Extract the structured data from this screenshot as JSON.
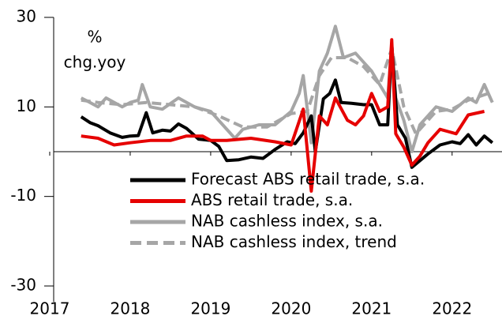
{
  "chart_data": {
    "type": "line",
    "annotation": "%",
    "annotation2": "chg.yoy",
    "xlim": [
      2017,
      2022.62
    ],
    "xticks": [
      2017,
      2018,
      2019,
      2020,
      2021,
      2022
    ],
    "ylim": [
      -30,
      30
    ],
    "yticks": [
      30,
      10,
      -10,
      -30
    ],
    "series": [
      {
        "name": "Forecast ABS retail trade, s.a.",
        "color": "#000000",
        "dash": false,
        "x": [
          2017.39,
          2017.5,
          2017.6,
          2017.75,
          2017.9,
          2018.0,
          2018.1,
          2018.2,
          2018.28,
          2018.4,
          2018.5,
          2018.6,
          2018.7,
          2018.85,
          2019.0,
          2019.1,
          2019.2,
          2019.35,
          2019.5,
          2019.65,
          2019.8,
          2019.95,
          2020.05,
          2020.15,
          2020.25,
          2020.3,
          2020.4,
          2020.48,
          2020.55,
          2020.62,
          2020.75,
          2020.9,
          2021.0,
          2021.1,
          2021.2,
          2021.25,
          2021.32,
          2021.42,
          2021.5,
          2021.6,
          2021.7,
          2021.85,
          2022.0,
          2022.1,
          2022.2,
          2022.3,
          2022.4,
          2022.5
        ],
        "values": [
          7.8,
          6.5,
          5.8,
          4.2,
          3.2,
          3.5,
          3.6,
          8.7,
          4.2,
          4.8,
          4.6,
          6.2,
          5.2,
          2.8,
          2.5,
          1.2,
          -2,
          -1.8,
          -1.2,
          -1.5,
          0.5,
          2.2,
          1.8,
          4.2,
          8,
          0,
          11.8,
          13,
          16,
          11,
          10.8,
          10.5,
          10.5,
          6,
          6,
          24,
          6,
          3,
          -3.5,
          -2,
          -0.5,
          1.5,
          2.2,
          1.8,
          3.8,
          1.5,
          3.5,
          2
        ]
      },
      {
        "name": "ABS retail trade, s.a.",
        "color": "#e60000",
        "dash": false,
        "x": [
          2017.39,
          2017.6,
          2017.8,
          2018.0,
          2018.25,
          2018.5,
          2018.7,
          2018.9,
          2019.0,
          2019.2,
          2019.5,
          2019.8,
          2020.0,
          2020.15,
          2020.25,
          2020.35,
          2020.45,
          2020.55,
          2020.7,
          2020.8,
          2020.9,
          2021.0,
          2021.1,
          2021.2,
          2021.25,
          2021.3,
          2021.4,
          2021.5,
          2021.6,
          2021.7,
          2021.85,
          2021.95,
          2022.05,
          2022.2,
          2022.4
        ],
        "values": [
          3.5,
          3,
          1.5,
          2,
          2.5,
          2.5,
          3.5,
          3.5,
          2.5,
          2.5,
          3,
          2.2,
          1.5,
          9.5,
          -8.8,
          8,
          6,
          12,
          7,
          6,
          8,
          13,
          9,
          10,
          25,
          4,
          1,
          -3,
          -1,
          2,
          5,
          4.5,
          4,
          8.2,
          9
        ]
      },
      {
        "name": "NAB cashless index, s.a.",
        "color": "#a6a6a6",
        "dash": false,
        "x": [
          2017.39,
          2017.5,
          2017.6,
          2017.7,
          2017.9,
          2018.0,
          2018.1,
          2018.15,
          2018.25,
          2018.4,
          2018.6,
          2018.8,
          2019.0,
          2019.15,
          2019.3,
          2019.4,
          2019.6,
          2019.8,
          2020.0,
          2020.1,
          2020.15,
          2020.25,
          2020.35,
          2020.45,
          2020.55,
          2020.65,
          2020.8,
          2020.9,
          2021.0,
          2021.1,
          2021.2,
          2021.25,
          2021.3,
          2021.4,
          2021.5,
          2021.6,
          2021.8,
          2022.0,
          2022.2,
          2022.3,
          2022.4,
          2022.5
        ],
        "values": [
          12,
          11,
          10,
          12,
          10,
          11,
          11.5,
          15,
          10,
          9.5,
          12,
          10,
          9,
          6,
          3,
          5,
          6,
          6,
          9,
          13,
          17,
          2,
          18,
          22,
          28,
          21,
          22,
          20,
          18,
          15,
          12,
          24,
          12,
          7,
          0,
          6,
          10,
          9,
          12,
          11,
          15,
          11
        ]
      },
      {
        "name": "NAB cashless index, trend",
        "color": "#a6a6a6",
        "dash": true,
        "x": [
          2017.39,
          2017.6,
          2017.9,
          2018.2,
          2018.5,
          2018.8,
          2019.1,
          2019.4,
          2019.7,
          2020.0,
          2020.2,
          2020.35,
          2020.5,
          2020.7,
          2020.9,
          2021.1,
          2021.25,
          2021.4,
          2021.55,
          2021.8,
          2022.0,
          2022.2,
          2022.45
        ],
        "values": [
          11.5,
          11,
          10.5,
          11,
          10.5,
          10,
          8,
          5.5,
          5.5,
          8.5,
          9,
          17,
          21,
          21,
          19,
          15,
          23,
          10,
          4,
          9,
          9.5,
          11.5,
          13
        ]
      }
    ]
  }
}
